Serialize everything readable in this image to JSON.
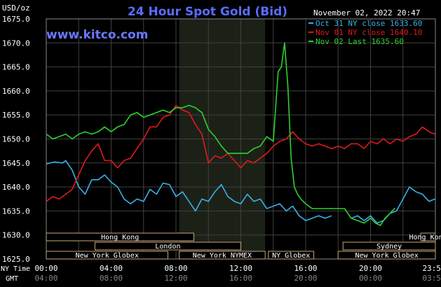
{
  "chart_data": {
    "type": "line",
    "title": "24 Hour Spot Gold (Bid)",
    "site": "www.kitco.com",
    "timestamp": "November 02, 2022 20:47",
    "ylabel": "USD/oz",
    "ylim": [
      1625,
      1675
    ],
    "ytick_labels": [
      "1675.0",
      "1670.0",
      "1665.0",
      "1660.0",
      "1655.0",
      "1650.0",
      "1645.0",
      "1640.0",
      "1635.0",
      "1630.0",
      "1625.0"
    ],
    "xlim": [
      0,
      24
    ],
    "x_ny_labels": [
      "00:00",
      "04:00",
      "08:00",
      "12:00",
      "16:00",
      "20:00",
      "23:59"
    ],
    "x_gmt_labels": [
      "04:00",
      "08:00",
      "12:00",
      "16:00",
      "20:00",
      "00:00",
      "03:59"
    ],
    "x_ny_prefix": "NY Time",
    "x_gmt_prefix": "GMT",
    "grid": true,
    "legend_position": "top-right",
    "series": [
      {
        "name": "Oct 31 NY close 1633.60",
        "color": "#3ab0e8",
        "x": [
          0,
          0.5,
          1,
          1.2,
          1.6,
          2,
          2.4,
          2.8,
          3.2,
          3.6,
          4,
          4.4,
          4.8,
          5.2,
          5.6,
          6,
          6.4,
          6.8,
          7.2,
          7.6,
          8,
          8.4,
          8.8,
          9.2,
          9.6,
          10,
          10.4,
          10.8,
          11.2,
          11.6,
          12,
          12.4,
          12.8,
          13.2,
          13.6,
          14,
          14.4,
          14.8,
          15.2,
          15.6,
          16,
          16.4,
          16.8,
          17.2,
          17.6,
          18,
          18.4,
          18.8,
          19.2,
          19.6,
          20,
          20.4,
          20.8,
          21.2,
          21.6,
          22,
          22.4,
          22.8,
          23.2,
          23.6,
          23.98
        ],
        "y": [
          1644.8,
          1645.2,
          1645.0,
          1645.5,
          1643.5,
          1640.0,
          1638.5,
          1641.5,
          1641.5,
          1642.5,
          1641.0,
          1640.0,
          1637.5,
          1636.5,
          1637.5,
          1637.0,
          1639.5,
          1638.5,
          1640.8,
          1640.5,
          1638.0,
          1639.0,
          1637.0,
          1635.0,
          1637.5,
          1637.0,
          1639.0,
          1640.5,
          1638.0,
          1637.0,
          1636.5,
          1638.5,
          1637.0,
          1637.5,
          1635.5,
          1636.0,
          1636.5,
          1635.0,
          1636.0,
          1634.0,
          1633.0,
          1633.5,
          1634.0,
          1633.5,
          1634.0,
          null,
          null,
          1633.5,
          1634.0,
          1633.0,
          1634.0,
          1632.5,
          1633.0,
          1634.5,
          1635.0,
          1637.5,
          1640.0,
          1639.0,
          1638.5,
          1637.0,
          1637.5
        ]
      },
      {
        "name": "Nov 01 NY close 1640.10",
        "color": "#e01a1a",
        "x": [
          0,
          0.4,
          0.8,
          1.2,
          1.6,
          2,
          2.4,
          2.8,
          3.2,
          3.6,
          4,
          4.4,
          4.8,
          5.2,
          5.6,
          6,
          6.4,
          6.8,
          7.2,
          7.6,
          8,
          8.4,
          8.8,
          9.2,
          9.6,
          10,
          10.4,
          10.8,
          11.2,
          11.6,
          12,
          12.4,
          12.8,
          13.2,
          13.6,
          14,
          14.4,
          14.8,
          15.2,
          15.6,
          16,
          16.4,
          16.8,
          17.2,
          17.6,
          18,
          18.4,
          18.8,
          19.2,
          19.6,
          20,
          20.4,
          20.8,
          21.2,
          21.6,
          22,
          22.4,
          22.8,
          23.2,
          23.6,
          23.98
        ],
        "y": [
          1637.0,
          1638.0,
          1637.5,
          1638.5,
          1639.5,
          1642.5,
          1645.5,
          1647.5,
          1649.0,
          1645.5,
          1645.5,
          1644.0,
          1645.5,
          1646.0,
          1648.0,
          1650.0,
          1652.5,
          1652.5,
          1654.5,
          1655.0,
          1657.0,
          1656.0,
          1655.5,
          1653.0,
          1651.0,
          1645.0,
          1646.5,
          1646.0,
          1647.0,
          1645.5,
          1644.0,
          1645.5,
          1645.0,
          1646.0,
          1647.0,
          1648.5,
          1649.5,
          1650.0,
          1651.5,
          1650.0,
          1649.0,
          1648.5,
          1649.0,
          1648.5,
          1648.0,
          1648.5,
          1648.0,
          1649.0,
          1649.0,
          1648.0,
          1649.5,
          1649.0,
          1650.0,
          1649.0,
          1650.0,
          1649.5,
          1650.5,
          1651.0,
          1652.5,
          1651.5,
          1651.0
        ]
      },
      {
        "name": "Nov 02 Last 1635.60",
        "color": "#2ed12e",
        "x": [
          0,
          0.4,
          0.8,
          1.2,
          1.6,
          2,
          2.4,
          2.8,
          3.2,
          3.6,
          4,
          4.4,
          4.8,
          5.2,
          5.6,
          6,
          6.4,
          6.8,
          7.2,
          7.6,
          8,
          8.4,
          8.8,
          9.2,
          9.6,
          10,
          10.4,
          10.8,
          11.2,
          11.6,
          12,
          12.4,
          12.8,
          13.2,
          13.6,
          14,
          14.3,
          14.5,
          14.7,
          14.9,
          15.1,
          15.3,
          15.5,
          15.7,
          16,
          16.4,
          16.8,
          17.2,
          17.6,
          18,
          18.4,
          18.8,
          19.2,
          19.6,
          20,
          20.3,
          20.6,
          20.9,
          21.2,
          21.5
        ],
        "y": [
          1651.0,
          1650.0,
          1650.5,
          1651.0,
          1650.0,
          1651.0,
          1651.5,
          1651.0,
          1651.5,
          1652.5,
          1651.5,
          1652.5,
          1653.0,
          1655.0,
          1655.5,
          1654.5,
          1655.0,
          1655.5,
          1656.0,
          1655.5,
          1656.5,
          1656.5,
          1657.0,
          1656.5,
          1655.5,
          1652.0,
          1650.5,
          1648.5,
          1647.0,
          1647.0,
          1647.0,
          1647.0,
          1648.0,
          1648.5,
          1650.5,
          1649.5,
          1664.0,
          1665.0,
          1670.0,
          1661.0,
          1646.0,
          1640.0,
          1638.5,
          1637.5,
          1636.5,
          1635.5,
          1635.5,
          1635.5,
          1635.5,
          1635.5,
          1635.5,
          1633.5,
          1633.0,
          1632.5,
          1633.5,
          1632.5,
          1632.0,
          1633.5,
          1634.5,
          1635.6
        ]
      }
    ]
  },
  "sessions": [
    {
      "label": "Hong Kong",
      "start": 0,
      "end": 9.1
    },
    {
      "label": "Hong Kong",
      "start": 23.1,
      "end": 24
    },
    {
      "label": "London",
      "start": 3.0,
      "end": 12.0
    },
    {
      "label": "Sydney",
      "start": 18.3,
      "end": 24
    },
    {
      "label": "New York Globex",
      "start": 0,
      "end": 7.5
    },
    {
      "label": "New York NYMEX",
      "start": 8.2,
      "end": 13.5
    },
    {
      "label": "NY Globex",
      "start": 13.7,
      "end": 16.5
    },
    {
      "label": "New York Globex",
      "start": 18.0,
      "end": 24
    }
  ],
  "nymex_highlight": {
    "start": 8.2,
    "end": 13.5
  },
  "colors": {
    "axis_text": "#ffffff",
    "grid": "#404040",
    "title": "#5a6cff",
    "site": "#6a78ff",
    "session_text": "#000000",
    "session_fill": "#c8a778"
  }
}
